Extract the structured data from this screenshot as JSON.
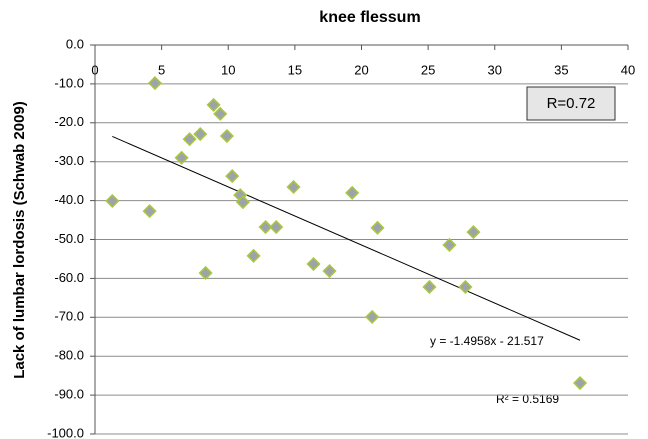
{
  "chart_data": {
    "type": "scatter",
    "title": "knee flessum",
    "y_label": "Lack of lumbar lordosis (Schwab 2009)",
    "x": [
      1.3,
      4.5,
      4.1,
      6.5,
      7.1,
      7.9,
      8.3,
      8.9,
      9.4,
      9.9,
      10.3,
      10.9,
      11.1,
      11.9,
      12.8,
      13.6,
      14.9,
      16.4,
      17.6,
      19.3,
      20.8,
      21.2,
      25.1,
      26.6,
      27.8,
      28.4,
      36.4
    ],
    "values": [
      -40.1,
      -9.8,
      -42.7,
      -29.0,
      -24.2,
      -22.9,
      -58.6,
      -15.4,
      -17.7,
      -23.4,
      -33.7,
      -38.6,
      -40.4,
      -54.2,
      -46.8,
      -46.8,
      -36.5,
      -56.3,
      -58.1,
      -38.0,
      -69.9,
      -47.0,
      -62.2,
      -51.4,
      -62.2,
      -48.1,
      -86.9
    ],
    "color": "#9ea3ab",
    "edge_color": "#a8c83c",
    "trendline": {
      "x": [
        1.3,
        36.4
      ],
      "values": [
        -23.5,
        -75.9
      ],
      "color": "#000000"
    },
    "equation": "y = -1.4958x - 21.517",
    "r_squared": "R² = 0.5169",
    "r_box": "R=0.72",
    "xlim": [
      0,
      40
    ],
    "xticks": [
      0,
      5,
      10,
      15,
      20,
      25,
      30,
      35,
      40
    ],
    "ylim": [
      -100,
      0
    ],
    "yticks": [
      {
        "value": 0,
        "label": "0.0"
      },
      {
        "value": -10,
        "label": "-10.0"
      },
      {
        "value": -20,
        "label": "-20.0"
      },
      {
        "value": -30,
        "label": "-30.0"
      },
      {
        "value": -40,
        "label": "-40.0"
      },
      {
        "value": -50,
        "label": "-50.0"
      },
      {
        "value": -60,
        "label": "-60.0"
      },
      {
        "value": -70,
        "label": "-70.0"
      },
      {
        "value": -80,
        "label": "-80.0"
      },
      {
        "value": -90,
        "label": "-90.0"
      },
      {
        "value": -100,
        "label": "-100.0"
      }
    ],
    "grid": true
  }
}
